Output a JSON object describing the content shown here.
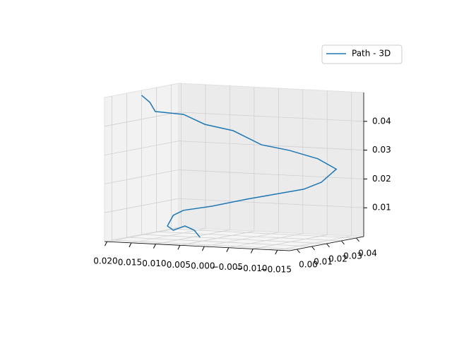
{
  "chart_data": {
    "type": "line3d",
    "series": [
      {
        "name": "Path - 3D",
        "color": "#1f77b4",
        "x": [
          0.0205,
          0.0188,
          0.0177,
          0.0119,
          0.0075,
          0.0017,
          -0.0041,
          -0.0099,
          -0.0157,
          -0.0172,
          -0.0164,
          -0.0128,
          -0.007,
          -0.0012,
          0.0061,
          0.0119,
          0.014,
          0.0152,
          0.014,
          0.0116,
          0.0097,
          0.0085
        ],
        "y": [
          0.02,
          0.02,
          0.02,
          0.02,
          0.02,
          0.02,
          0.02,
          0.02,
          0.02,
          0.0275,
          0.02,
          0.02,
          0.02,
          0.02,
          0.02,
          0.02,
          0.02,
          0.02,
          0.02,
          0.02,
          0.02,
          0.02
        ],
        "z": [
          0.0483,
          0.046,
          0.0429,
          0.0424,
          0.0393,
          0.0376,
          0.0332,
          0.0317,
          0.0293,
          0.0251,
          0.0212,
          0.0185,
          0.0163,
          0.0141,
          0.011,
          0.0091,
          0.0072,
          0.0034,
          0.002,
          0.0037,
          0.0024,
          0.0
        ]
      }
    ],
    "xlim": [
      0.0205,
      -0.0175
    ],
    "xticks": [
      {
        "value": 0.02,
        "label": "0.020"
      },
      {
        "value": 0.015,
        "label": "0.015"
      },
      {
        "value": 0.01,
        "label": "0.010"
      },
      {
        "value": 0.005,
        "label": "0.005"
      },
      {
        "value": 0,
        "label": "0.000"
      },
      {
        "value": -0.005,
        "label": "−0.005"
      },
      {
        "value": -0.01,
        "label": "−0.010"
      },
      {
        "value": -0.015,
        "label": "−0.015"
      }
    ],
    "ylim": [
      -0.005,
      0.045
    ],
    "yticks": [
      {
        "value": 0,
        "label": "0.00"
      },
      0.01,
      0.02,
      0.03,
      0.04
    ],
    "zlim": [
      0.0,
      0.05
    ],
    "zticks": [
      0.01,
      0.02,
      0.03,
      0.04
    ],
    "grid": true,
    "legend": "upper right"
  }
}
